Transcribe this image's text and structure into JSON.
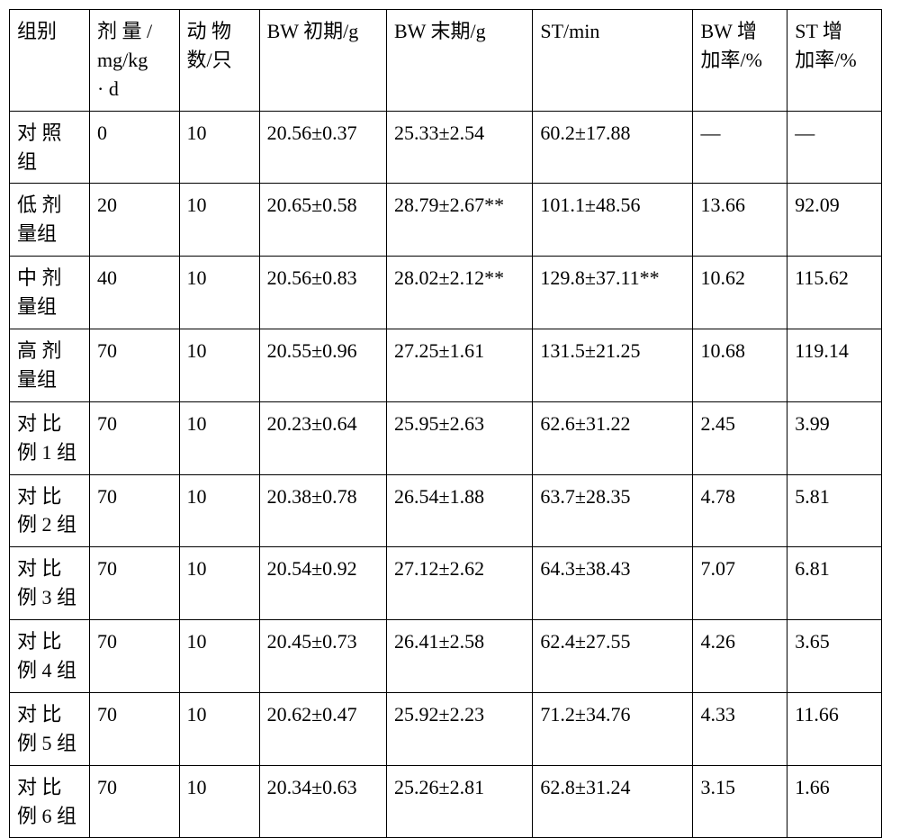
{
  "table": {
    "type": "table",
    "border_color": "#000000",
    "background_color": "#ffffff",
    "text_color": "#000000",
    "font_family": "SimSun / Times New Roman",
    "font_size_pt": 16,
    "column_widths_pct": [
      8.5,
      9.5,
      8.5,
      13.5,
      15.5,
      17,
      10,
      10
    ],
    "columns": [
      {
        "key": "group",
        "label_lines": [
          "组别"
        ]
      },
      {
        "key": "dose",
        "label_lines": [
          "剂 量 /",
          "mg/kg",
          "· d"
        ]
      },
      {
        "key": "n",
        "label_lines": [
          "动 物",
          "数/只"
        ]
      },
      {
        "key": "bw_initial",
        "label_lines": [
          "BW 初期/g"
        ]
      },
      {
        "key": "bw_final",
        "label_lines": [
          "BW 末期/g"
        ]
      },
      {
        "key": "st",
        "label_lines": [
          "ST/min"
        ]
      },
      {
        "key": "bw_inc",
        "label_lines": [
          "BW 增",
          "加率/%"
        ]
      },
      {
        "key": "st_inc",
        "label_lines": [
          "ST 增",
          "加率/%"
        ]
      }
    ],
    "rows": [
      {
        "group_lines": [
          "对 照",
          "组"
        ],
        "dose": "0",
        "n": "10",
        "bw_initial": "20.56±0.37",
        "bw_final": "25.33±2.54",
        "st": "60.2±17.88",
        "bw_inc": "—",
        "st_inc": "—"
      },
      {
        "group_lines": [
          "低 剂",
          "量组"
        ],
        "dose": "20",
        "n": "10",
        "bw_initial": "20.65±0.58",
        "bw_final": "28.79±2.67**",
        "st": "101.1±48.56",
        "bw_inc": "13.66",
        "st_inc": "92.09"
      },
      {
        "group_lines": [
          "中 剂",
          "量组"
        ],
        "dose": "40",
        "n": "10",
        "bw_initial": "20.56±0.83",
        "bw_final": "28.02±2.12**",
        "st": "129.8±37.11**",
        "bw_inc": "10.62",
        "st_inc": "115.62"
      },
      {
        "group_lines": [
          "高 剂",
          "量组"
        ],
        "dose": "70",
        "n": "10",
        "bw_initial": "20.55±0.96",
        "bw_final": "27.25±1.61",
        "st": "131.5±21.25",
        "bw_inc": "10.68",
        "st_inc": "119.14"
      },
      {
        "group_lines": [
          "对 比",
          "例 1 组"
        ],
        "dose": "70",
        "n": "10",
        "bw_initial": "20.23±0.64",
        "bw_final": "25.95±2.63",
        "st": "62.6±31.22",
        "bw_inc": "2.45",
        "st_inc": "3.99"
      },
      {
        "group_lines": [
          "对 比",
          "例 2 组"
        ],
        "dose": "70",
        "n": "10",
        "bw_initial": "20.38±0.78",
        "bw_final": "26.54±1.88",
        "st": "63.7±28.35",
        "bw_inc": "4.78",
        "st_inc": "5.81"
      },
      {
        "group_lines": [
          "对 比",
          "例 3 组"
        ],
        "dose": "70",
        "n": "10",
        "bw_initial": "20.54±0.92",
        "bw_final": "27.12±2.62",
        "st": "64.3±38.43",
        "bw_inc": "7.07",
        "st_inc": "6.81"
      },
      {
        "group_lines": [
          "对 比",
          "例 4 组"
        ],
        "dose": "70",
        "n": "10",
        "bw_initial": "20.45±0.73",
        "bw_final": "26.41±2.58",
        "st": "62.4±27.55",
        "bw_inc": "4.26",
        "st_inc": "3.65"
      },
      {
        "group_lines": [
          "对 比",
          "例 5 组"
        ],
        "dose": "70",
        "n": "10",
        "bw_initial": "20.62±0.47",
        "bw_final": "25.92±2.23",
        "st": "71.2±34.76",
        "bw_inc": "4.33",
        "st_inc": "11.66"
      },
      {
        "group_lines": [
          "对 比",
          "例 6 组"
        ],
        "dose": "70",
        "n": "10",
        "bw_initial": "20.34±0.63",
        "bw_final": "25.26±2.81",
        "st": "62.8±31.24",
        "bw_inc": "3.15",
        "st_inc": "1.66"
      }
    ]
  }
}
